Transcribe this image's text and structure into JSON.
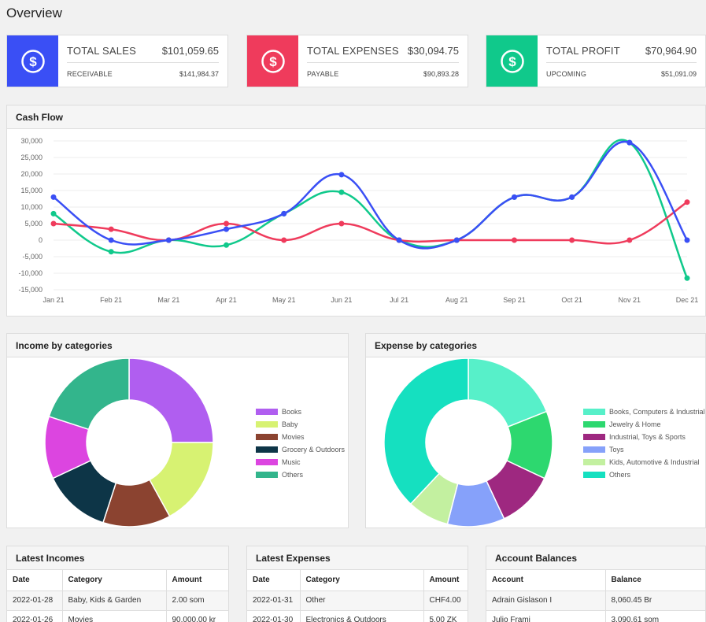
{
  "page": {
    "title": "Overview"
  },
  "colors": {
    "sales": "#3a4ff5",
    "expenses": "#ef3b5c",
    "profit": "#10c98b"
  },
  "cards": [
    {
      "label": "TOTAL SALES",
      "value": "$101,059.65",
      "sub_label": "RECEIVABLE",
      "sub_value": "$141,984.37",
      "icon": "dollar-icon"
    },
    {
      "label": "TOTAL EXPENSES",
      "value": "$30,094.75",
      "sub_label": "PAYABLE",
      "sub_value": "$90,893.28",
      "icon": "dollar-icon"
    },
    {
      "label": "TOTAL PROFIT",
      "value": "$70,964.90",
      "sub_label": "UPCOMING",
      "sub_value": "$51,091.09",
      "icon": "dollar-icon"
    }
  ],
  "cashflow": {
    "title": "Cash Flow"
  },
  "income": {
    "title": "Income by categories"
  },
  "expense": {
    "title": "Expense by categories"
  },
  "chart_data": [
    {
      "type": "line",
      "categories": [
        "Jan 21",
        "Feb 21",
        "Mar 21",
        "Apr 21",
        "May 21",
        "Jun 21",
        "Jul 21",
        "Aug 21",
        "Sep 21",
        "Oct 21",
        "Nov 21",
        "Dec 21"
      ],
      "ylim": [
        -15000,
        30000
      ],
      "yticks": [
        30000,
        25000,
        20000,
        15000,
        10000,
        5000,
        0,
        -5000,
        -10000,
        -15000
      ],
      "ytick_labels": [
        "30,000",
        "25,000",
        "20,000",
        "15,000",
        "10,000",
        "5,000",
        "0",
        "-5,000",
        "-10,000",
        "-15,000"
      ],
      "grid": true,
      "series": [
        {
          "color": "#10c98b",
          "values": [
            8000,
            -3500,
            0,
            -1500,
            8000,
            14500,
            0,
            0,
            13000,
            13000,
            29500,
            -11500
          ]
        },
        {
          "color": "#ef3b5c",
          "values": [
            5000,
            3300,
            0,
            5000,
            0,
            5000,
            0,
            0,
            0,
            0,
            0,
            11500
          ]
        },
        {
          "color": "#3a4ff5",
          "values": [
            13000,
            0,
            0,
            3300,
            8000,
            19800,
            0,
            0,
            13000,
            13000,
            29500,
            0
          ]
        }
      ]
    },
    {
      "type": "pie",
      "donut": true,
      "labels": [
        "Books",
        "Baby",
        "Movies",
        "Grocery & Outdoors",
        "Music",
        "Others"
      ],
      "values": [
        25,
        17,
        13,
        13,
        12,
        20
      ],
      "colors": [
        "#b05ef0",
        "#d7f272",
        "#8b4330",
        "#0d3547",
        "#dc45e0",
        "#33b58c"
      ]
    },
    {
      "type": "pie",
      "donut": true,
      "labels": [
        "Books, Computers & Industrial",
        "Jewelry & Home",
        "Industrial, Toys & Sports",
        "Toys",
        "Kids, Automotive & Industrial",
        "Others"
      ],
      "values": [
        19,
        13,
        11,
        11,
        8,
        38
      ],
      "colors": [
        "#57f0c9",
        "#2dd86f",
        "#9e2880",
        "#86a1fa",
        "#c3f0a0",
        "#15e0c0"
      ]
    }
  ],
  "tables": {
    "incomes": {
      "title": "Latest Incomes",
      "headers": [
        "Date",
        "Category",
        "Amount"
      ],
      "rows": [
        [
          "2022-01-28",
          "Baby, Kids & Garden",
          "2.00 som"
        ],
        [
          "2022-01-26",
          "Movies",
          "90,000.00 kr"
        ]
      ]
    },
    "expenses": {
      "title": "Latest Expenses",
      "headers": [
        "Date",
        "Category",
        "Amount"
      ],
      "rows": [
        [
          "2022-01-31",
          "Other",
          "CHF4.00"
        ],
        [
          "2022-01-30",
          "Electronics & Outdoors",
          "5.00 ZK"
        ]
      ]
    },
    "balances": {
      "title": "Account Balances",
      "headers": [
        "Account",
        "Balance"
      ],
      "rows": [
        [
          "Adrain Gislason I",
          "8,060.45 Br"
        ],
        [
          "Julio Frami",
          "3,090.61 som"
        ]
      ]
    }
  }
}
